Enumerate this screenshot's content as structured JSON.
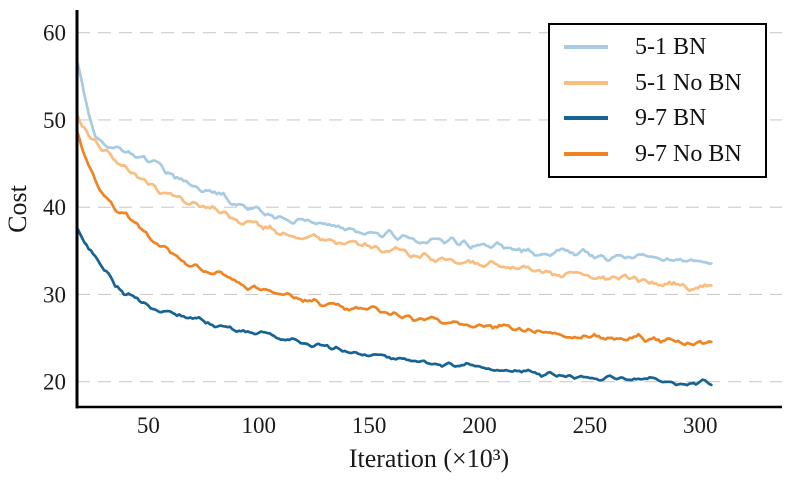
{
  "chart_data": {
    "type": "line",
    "title": "",
    "xlabel": "Iteration (×10³)",
    "ylabel": "Cost",
    "xlim": [
      17.7,
      337
    ],
    "ylim": [
      17.1,
      62.6
    ],
    "xticks": [
      50,
      100,
      150,
      200,
      250,
      300
    ],
    "yticks": [
      20,
      30,
      40,
      50,
      60
    ],
    "grid": "horizontal-dashed",
    "legend_position": "top-right",
    "x_anchor_points": [
      18,
      20,
      23,
      26,
      30,
      35,
      40,
      45,
      50,
      55,
      60,
      65,
      70,
      75,
      80,
      85,
      90,
      95,
      100,
      110,
      120,
      130,
      140,
      150,
      160,
      170,
      180,
      190,
      200,
      210,
      220,
      230,
      240,
      250,
      260,
      270,
      280,
      290,
      295,
      300,
      305
    ],
    "series": [
      {
        "name": "5-1 BN",
        "color": "#a6cbe3",
        "noise": 0.55,
        "values": [
          56.5,
          54.5,
          50.5,
          48.4,
          47.5,
          46.8,
          46.3,
          46.0,
          45.5,
          44.8,
          44.0,
          43.2,
          42.6,
          42.0,
          41.6,
          41.2,
          40.6,
          40.2,
          39.7,
          38.8,
          38.4,
          38.1,
          37.6,
          37.2,
          36.8,
          36.4,
          36.1,
          35.9,
          35.7,
          35.4,
          35.1,
          34.8,
          34.9,
          34.6,
          34.3,
          34.5,
          34.1,
          33.8,
          34.0,
          34.1,
          33.9
        ]
      },
      {
        "name": "5-1 No BN",
        "color": "#f9bd80",
        "noise": 0.55,
        "values": [
          50.5,
          49.3,
          48.2,
          47.5,
          46.5,
          45.3,
          44.4,
          43.4,
          42.6,
          42.1,
          41.5,
          41.0,
          40.6,
          40.0,
          39.6,
          39.4,
          38.8,
          38.3,
          37.9,
          37.2,
          36.6,
          36.3,
          35.9,
          35.5,
          35.0,
          34.6,
          34.2,
          33.9,
          33.7,
          33.3,
          32.9,
          32.6,
          32.3,
          32.0,
          31.9,
          31.8,
          31.5,
          31.0,
          30.7,
          30.9,
          31.0
        ]
      },
      {
        "name": "9-7 BN",
        "color": "#176394",
        "noise": 0.38,
        "values": [
          37.5,
          36.5,
          35.2,
          34.2,
          32.8,
          31.2,
          30.0,
          29.6,
          28.7,
          28.2,
          27.9,
          27.6,
          27.3,
          26.9,
          26.5,
          26.2,
          25.9,
          25.7,
          25.5,
          25.1,
          24.5,
          24.0,
          23.5,
          23.1,
          22.7,
          22.3,
          22.0,
          21.8,
          21.6,
          21.3,
          21.1,
          20.8,
          20.6,
          20.4,
          20.3,
          20.4,
          20.2,
          19.9,
          19.6,
          19.9,
          19.8
        ]
      },
      {
        "name": "9-7 No BN",
        "color": "#ef8423",
        "noise": 0.45,
        "values": [
          48.5,
          46.8,
          44.5,
          43.0,
          41.5,
          39.8,
          39.2,
          38.0,
          36.6,
          35.6,
          34.9,
          34.1,
          33.4,
          32.9,
          32.6,
          32.3,
          31.4,
          30.8,
          30.6,
          30.2,
          29.4,
          28.9,
          28.5,
          28.3,
          27.8,
          27.3,
          27.0,
          26.8,
          26.5,
          26.2,
          25.9,
          25.6,
          25.4,
          25.2,
          25.0,
          25.1,
          24.9,
          24.5,
          24.3,
          24.6,
          24.4
        ]
      }
    ],
    "style": {
      "line_width": 2.7,
      "grid_color": "#cccccc",
      "axis_color": "#000000",
      "background": "#ffffff",
      "legend_border_color": "#000000"
    }
  }
}
